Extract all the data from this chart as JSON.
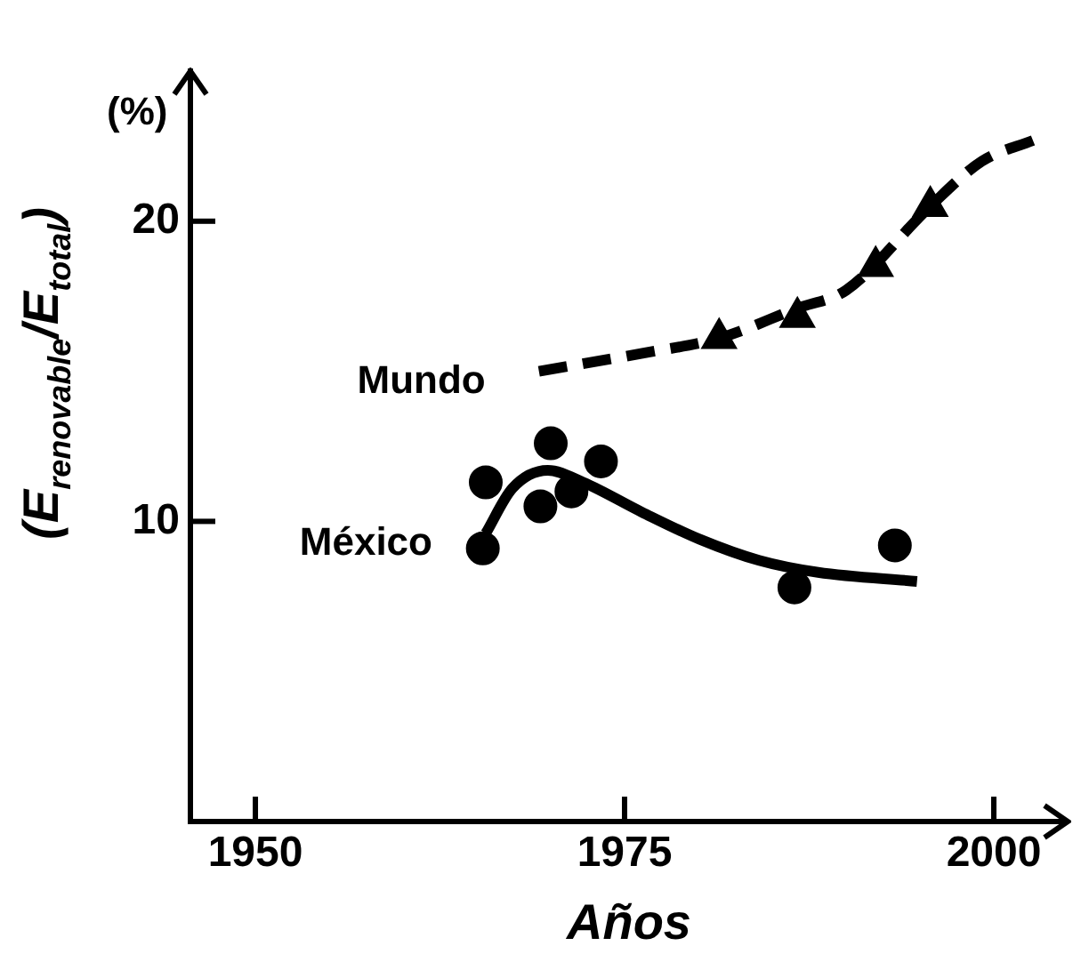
{
  "chart_data": {
    "type": "scatter",
    "xlabel": "Años",
    "ylabel": "(E$_{renovable}$/E$_{total}$)",
    "annotations": [
      "(%)"
    ],
    "xlim": [
      1945.6,
      2005
    ],
    "xticks": [
      1950,
      1975,
      2000
    ],
    "ylim": [
      0,
      25
    ],
    "yticks": [
      10,
      20
    ],
    "grid": false,
    "legend": false,
    "series": [
      {
        "type": "scatter",
        "color": "#000000",
        "marker": "circle",
        "x": [
          1965.4,
          1965.6,
          1970.0,
          1969.3,
          1971.4,
          1973.4,
          1986.5,
          1993.3
        ],
        "values": [
          9.1,
          11.3,
          12.6,
          10.5,
          11.0,
          12.0,
          7.8,
          9.2
        ]
      },
      {
        "type": "line",
        "name": "México",
        "color": "#000000",
        "line_style": "solid",
        "marker": "none",
        "x": [
          1965.6,
          1967.4,
          1969.8,
          1972.2,
          1976.2,
          1980.1,
          1984.1,
          1988.1,
          1994.8
        ],
        "values": [
          9.6,
          11.1,
          11.7,
          11.3,
          10.3,
          9.4,
          8.7,
          8.3,
          8.0
        ]
      },
      {
        "type": "line",
        "name": "Mundo",
        "color": "#000000",
        "line_style": "dashed",
        "marker": "none",
        "x": [
          1969.2,
          1976.2,
          1981.4,
          1986.7,
          1990.0,
          1995.7,
          1999.2,
          2002.7
        ],
        "values": [
          15.0,
          15.6,
          16.1,
          17.1,
          17.7,
          20.5,
          22.0,
          22.7
        ]
      },
      {
        "type": "scatter",
        "color": "#000000",
        "marker": "triangle",
        "x": [
          1981.4,
          1986.7,
          1992.0,
          1995.7
        ],
        "values": [
          16.1,
          16.8,
          18.5,
          20.5
        ]
      }
    ]
  }
}
